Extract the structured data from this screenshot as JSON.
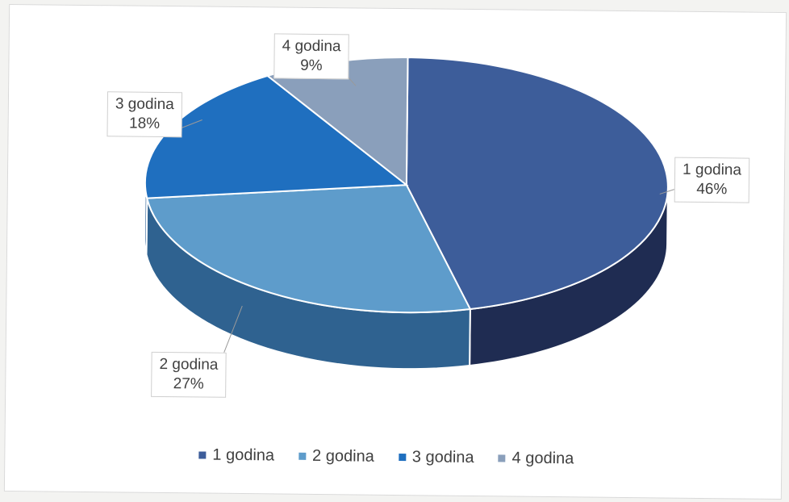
{
  "chart_data": {
    "type": "pie",
    "title": "",
    "categories": [
      "1 godina",
      "2 godina",
      "3 godina",
      "4 godina"
    ],
    "values": [
      46,
      27,
      18,
      9
    ],
    "value_labels": [
      "46%",
      "27%",
      "18%",
      "9%"
    ],
    "colors": [
      "#3d5d9a",
      "#5e9ccb",
      "#1f6fbf",
      "#8a9fbb"
    ],
    "side_colors": [
      "#1f2c52",
      "#2f6290",
      "#174f8a",
      "#5a6d88"
    ],
    "legend_position": "bottom",
    "style": "3d"
  }
}
